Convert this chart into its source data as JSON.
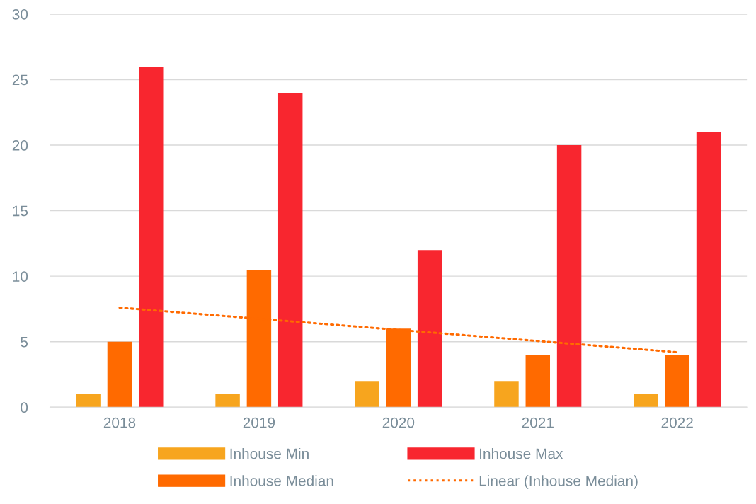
{
  "chart_data": {
    "type": "bar",
    "categories": [
      "2018",
      "2019",
      "2020",
      "2021",
      "2022"
    ],
    "series": [
      {
        "name": "Inhouse Min",
        "color": "#f7a51e",
        "values": [
          1,
          1,
          2,
          2,
          1
        ]
      },
      {
        "name": "Inhouse Median",
        "color": "#ff6a00",
        "values": [
          5,
          10.5,
          6,
          4,
          4
        ]
      },
      {
        "name": "Inhouse Max",
        "color": "#f8262f",
        "values": [
          26,
          24,
          12,
          20,
          21
        ]
      },
      {
        "name": "Linear (Inhouse Median)",
        "type": "line",
        "color": "#ff6a00",
        "line_style": "dotted",
        "values": [
          7.6,
          6.75,
          5.9,
          5.05,
          4.2
        ]
      }
    ],
    "ylim": [
      0,
      30
    ],
    "yticks": [
      0,
      5,
      10,
      15,
      20,
      25,
      30
    ],
    "grid": "y",
    "legend": "bottom"
  }
}
